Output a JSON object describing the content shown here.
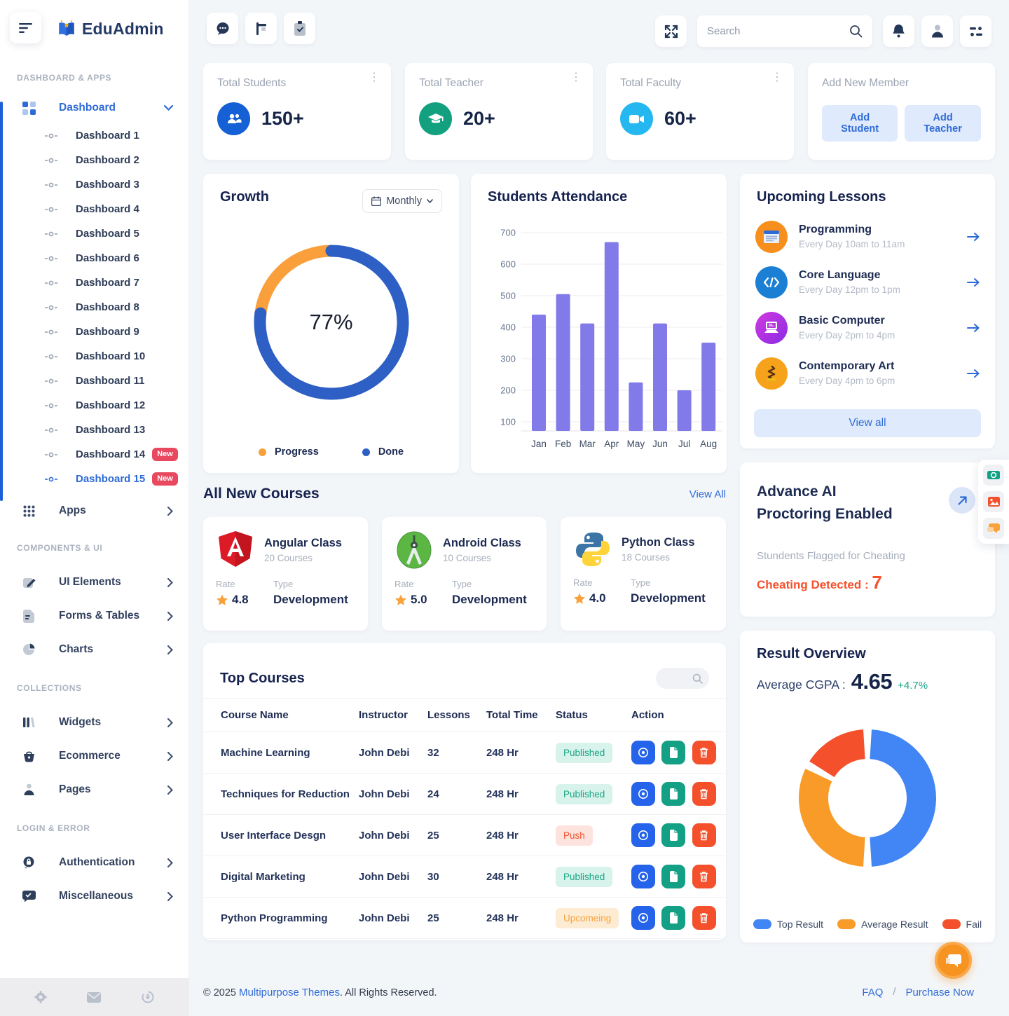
{
  "sidebar": {
    "logo": "EduAdmin",
    "section_labels": {
      "dashboard_apps": "DASHBOARD & APPS",
      "components_ui": "COMPONENTS & UI",
      "collections": "COLLECTIONS",
      "login_error": "LOGIN & ERROR"
    },
    "dashboard_parent": "Dashboard",
    "dashboard_items": [
      {
        "label": "Dashboard 1"
      },
      {
        "label": "Dashboard 2"
      },
      {
        "label": "Dashboard 3"
      },
      {
        "label": "Dashboard 4"
      },
      {
        "label": "Dashboard 5"
      },
      {
        "label": "Dashboard 6"
      },
      {
        "label": "Dashboard 7"
      },
      {
        "label": "Dashboard 8"
      },
      {
        "label": "Dashboard 9"
      },
      {
        "label": "Dashboard 10"
      },
      {
        "label": "Dashboard 11"
      },
      {
        "label": "Dashboard 12"
      },
      {
        "label": "Dashboard 13"
      },
      {
        "label": "Dashboard 14",
        "badge": "New"
      },
      {
        "label": "Dashboard 15",
        "badge": "New"
      }
    ],
    "apps_label": "Apps",
    "components": [
      {
        "label": "UI Elements"
      },
      {
        "label": "Forms & Tables"
      },
      {
        "label": "Charts"
      }
    ],
    "collections": [
      {
        "label": "Widgets"
      },
      {
        "label": "Ecommerce"
      },
      {
        "label": "Pages"
      }
    ],
    "login_error": [
      {
        "label": "Authentication"
      },
      {
        "label": "Miscellaneous"
      }
    ]
  },
  "topbar": {
    "search_placeholder": "Search"
  },
  "stats": [
    {
      "title": "Total Students",
      "value": "150+",
      "color": "#1560d4"
    },
    {
      "title": "Total Teacher",
      "value": "20+",
      "color": "#13a07f"
    },
    {
      "title": "Total Faculty",
      "value": "60+",
      "color": "#25b8f0"
    }
  ],
  "add_member": {
    "title": "Add New Member",
    "btn_student": "Add Student",
    "btn_teacher": "Add Teacher"
  },
  "growth": {
    "title": "Growth",
    "filter": "Monthly",
    "percent": "77%",
    "legend": [
      {
        "label": "Progress",
        "color": "#f9a03c"
      },
      {
        "label": "Done",
        "color": "#2d5fc4"
      }
    ]
  },
  "attendance": {
    "title": "Students Attendance"
  },
  "chart_data": [
    {
      "type": "donut",
      "title": "Growth",
      "center_label": "77%",
      "series": [
        {
          "name": "Done",
          "value": 77,
          "color": "#2d5fc4"
        },
        {
          "name": "Progress",
          "value": 23,
          "color": "#f9a03c"
        }
      ],
      "legend_position": "bottom"
    },
    {
      "type": "bar",
      "title": "Students Attendance",
      "categories": [
        "Jan",
        "Feb",
        "Mar",
        "Apr",
        "May",
        "Jun",
        "Jul",
        "Aug"
      ],
      "values": [
        440,
        505,
        412,
        670,
        225,
        412,
        200,
        351
      ],
      "ylim": [
        100,
        700
      ],
      "yticks": [
        100,
        200,
        300,
        400,
        500,
        600,
        700
      ],
      "grid": true,
      "color": "#817ae8",
      "xlabel": "",
      "ylabel": ""
    },
    {
      "type": "donut",
      "title": "Result Overview",
      "series": [
        {
          "name": "Top Result",
          "value": 50,
          "color": "#4285f4"
        },
        {
          "name": "Average Result",
          "value": 33,
          "color": "#f99b28"
        },
        {
          "name": "Fail",
          "value": 17,
          "color": "#f4502c"
        }
      ],
      "legend_position": "bottom"
    }
  ],
  "lessons": {
    "title": "Upcoming Lessons",
    "items": [
      {
        "name": "Programming",
        "time": "Every Day 10am to 11am"
      },
      {
        "name": "Core Language",
        "time": "Every Day 12pm to 1pm"
      },
      {
        "name": "Basic Computer",
        "time": "Every Day 2pm to 4pm"
      },
      {
        "name": "Contemporary Art",
        "time": "Every Day 4pm to 6pm"
      }
    ],
    "view_all": "View all"
  },
  "courses": {
    "title": "All New Courses",
    "view_all": "View All",
    "items": [
      {
        "name": "Angular Class",
        "count": "20 Courses",
        "rate_label": "Rate",
        "rate": "4.8",
        "type_label": "Type",
        "type": "Development"
      },
      {
        "name": "Android Class",
        "count": "10 Courses",
        "rate_label": "Rate",
        "rate": "5.0",
        "type_label": "Type",
        "type": "Development"
      },
      {
        "name": "Python Class",
        "count": "18 Courses",
        "rate_label": "Rate",
        "rate": "4.0",
        "type_label": "Type",
        "type": "Development"
      }
    ]
  },
  "proctoring": {
    "title_line1": "Advance AI",
    "title_line2": "Proctoring Enabled",
    "subtitle": "Stundents Flagged for Cheating",
    "alert_label": "Cheating Detected :",
    "alert_value": "7"
  },
  "top_courses": {
    "title": "Top Courses",
    "columns": [
      "Course Name",
      "Instructor",
      "Lessons",
      "Total Time",
      "Status",
      "Action"
    ],
    "rows": [
      {
        "name": "Machine Learning",
        "instructor": "John Debi",
        "lessons": "32",
        "time": "248 Hr",
        "status": "Published"
      },
      {
        "name": "Techniques for Reduction",
        "instructor": "John Debi",
        "lessons": "24",
        "time": "248 Hr",
        "status": "Published"
      },
      {
        "name": "User Interface Desgn",
        "instructor": "John Debi",
        "lessons": "25",
        "time": "248 Hr",
        "status": "Push"
      },
      {
        "name": "Digital Marketing",
        "instructor": "John Debi",
        "lessons": "30",
        "time": "248 Hr",
        "status": "Published"
      },
      {
        "name": "Python Programming",
        "instructor": "John Debi",
        "lessons": "25",
        "time": "248 Hr",
        "status": "Upcomeing"
      }
    ]
  },
  "result": {
    "title": "Result Overview",
    "avg_label": "Average CGPA :",
    "avg_value": "4.65",
    "avg_delta": "+4.7%",
    "legend": [
      {
        "label": "Top Result",
        "color": "#4285f4"
      },
      {
        "label": "Average Result",
        "color": "#f99b28"
      },
      {
        "label": "Fail",
        "color": "#f4502c"
      }
    ]
  },
  "footer": {
    "copyright_prefix": "© 2025 ",
    "copyright_link": "Multipurpose Themes",
    "copyright_suffix": ". All Rights Reserved.",
    "faq": "FAQ",
    "divider": "/",
    "purchase": "Purchase Now"
  }
}
